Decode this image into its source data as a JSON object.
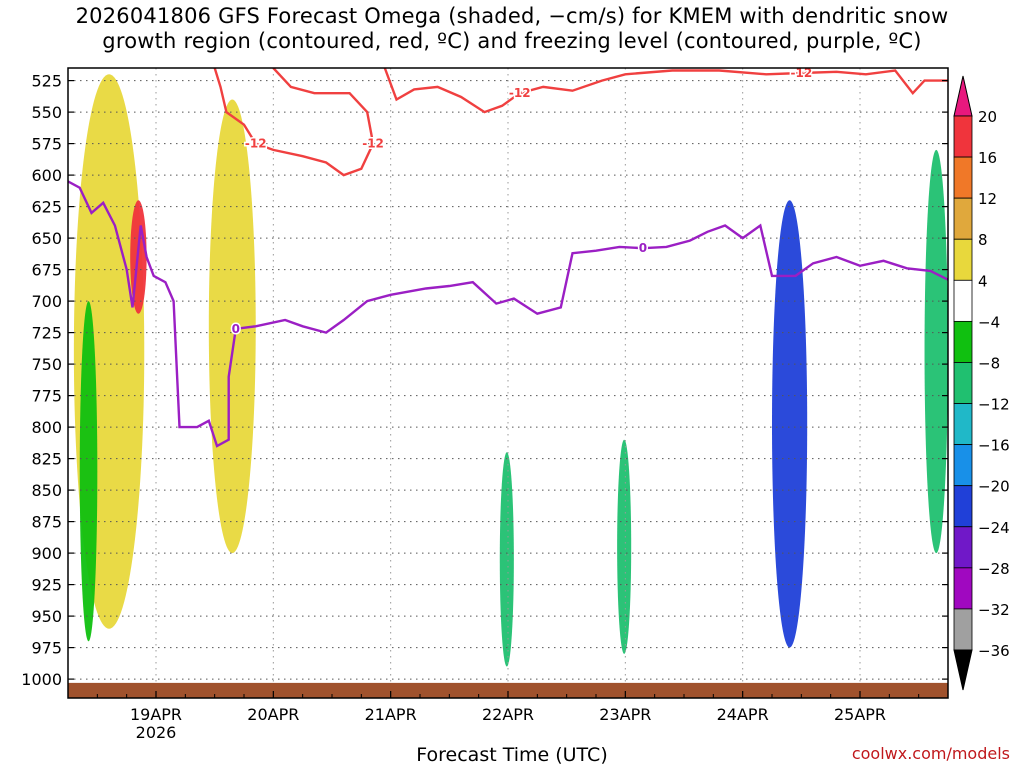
{
  "chart_data": {
    "type": "heatmap",
    "title": "2026041806 GFS Forecast Omega (shaded, −cm/s) for KMEM with dendritic snow\ngrowth region (contoured, red, ºC) and freezing level (contoured, purple, ºC)",
    "xlabel": "Forecast Time (UTC)",
    "ylabel": "",
    "x_ticks": [
      "19APR",
      "20APR",
      "21APR",
      "22APR",
      "23APR",
      "24APR",
      "25APR"
    ],
    "x_tick_year": "2026",
    "x_range_days": [
      18.25,
      25.75
    ],
    "y_ticks": [
      525,
      550,
      575,
      600,
      625,
      650,
      675,
      700,
      725,
      750,
      775,
      800,
      825,
      850,
      875,
      900,
      925,
      950,
      975,
      1000
    ],
    "y_range_hpa": [
      515,
      1015
    ],
    "colorbar": {
      "levels": [
        20,
        16,
        12,
        8,
        4,
        -4,
        -8,
        -12,
        -16,
        -20,
        -24,
        -28,
        -32,
        -36
      ],
      "colors": [
        "#e8187e",
        "#f0343c",
        "#f07828",
        "#e0a83c",
        "#e8d83c",
        "#ffffff",
        "#10c010",
        "#20c070",
        "#20b8c8",
        "#1890e8",
        "#2040d8",
        "#7018c8",
        "#a008c0",
        "#a0a0a0",
        "#000000"
      ],
      "units": "-cm/s"
    },
    "series": [
      {
        "name": "freezing level (0 ºC)",
        "color": "#9b1fc4",
        "contour_label": "0",
        "points": [
          [
            18.25,
            605
          ],
          [
            18.35,
            610
          ],
          [
            18.45,
            630
          ],
          [
            18.55,
            622
          ],
          [
            18.65,
            640
          ],
          [
            18.75,
            675
          ],
          [
            18.8,
            705
          ],
          [
            18.87,
            640
          ],
          [
            18.92,
            665
          ],
          [
            18.98,
            680
          ],
          [
            19.08,
            685
          ],
          [
            19.15,
            700
          ],
          [
            19.2,
            800
          ],
          [
            19.35,
            800
          ],
          [
            19.45,
            795
          ],
          [
            19.52,
            815
          ],
          [
            19.62,
            810
          ],
          [
            19.62,
            760
          ],
          [
            19.68,
            722
          ],
          [
            19.85,
            720
          ],
          [
            20.1,
            715
          ],
          [
            20.25,
            720
          ],
          [
            20.45,
            725
          ],
          [
            20.6,
            715
          ],
          [
            20.8,
            700
          ],
          [
            21.0,
            695
          ],
          [
            21.3,
            690
          ],
          [
            21.5,
            688
          ],
          [
            21.7,
            685
          ],
          [
            21.9,
            702
          ],
          [
            22.05,
            698
          ],
          [
            22.25,
            710
          ],
          [
            22.45,
            705
          ],
          [
            22.55,
            662
          ],
          [
            22.75,
            660
          ],
          [
            22.95,
            657
          ],
          [
            23.15,
            658
          ],
          [
            23.35,
            657
          ],
          [
            23.55,
            652
          ],
          [
            23.7,
            645
          ],
          [
            23.85,
            640
          ],
          [
            24.0,
            650
          ],
          [
            24.15,
            640
          ],
          [
            24.25,
            680
          ],
          [
            24.45,
            680
          ],
          [
            24.6,
            670
          ],
          [
            24.8,
            665
          ],
          [
            25.0,
            672
          ],
          [
            25.2,
            668
          ],
          [
            25.4,
            674
          ],
          [
            25.6,
            676
          ],
          [
            25.75,
            683
          ]
        ]
      },
      {
        "name": "dendritic snow growth region (-12 ºC)",
        "color": "#f04040",
        "contour_label": "-12",
        "points": [
          [
            20.0,
            515
          ],
          [
            20.15,
            530
          ],
          [
            20.35,
            535
          ],
          [
            20.65,
            535
          ],
          [
            20.8,
            550
          ],
          [
            20.85,
            575
          ],
          [
            20.75,
            595
          ],
          [
            20.6,
            600
          ],
          [
            20.45,
            590
          ],
          [
            20.25,
            585
          ],
          [
            20.0,
            580
          ],
          [
            19.85,
            575
          ],
          [
            19.75,
            560
          ],
          [
            19.6,
            550
          ],
          [
            19.55,
            530
          ],
          [
            19.5,
            515
          ]
        ]
      },
      {
        "name": "dendritic snow growth region (-12 ºC) upper",
        "color": "#f04040",
        "contour_label": "-12",
        "points": [
          [
            20.95,
            515
          ],
          [
            21.05,
            540
          ],
          [
            21.2,
            532
          ],
          [
            21.4,
            530
          ],
          [
            21.6,
            538
          ],
          [
            21.8,
            550
          ],
          [
            21.95,
            545
          ],
          [
            22.1,
            535
          ],
          [
            22.3,
            530
          ],
          [
            22.55,
            533
          ],
          [
            22.8,
            525
          ],
          [
            23.0,
            520
          ],
          [
            23.4,
            517
          ],
          [
            23.8,
            517
          ],
          [
            24.2,
            520
          ],
          [
            24.5,
            519
          ],
          [
            24.8,
            518
          ],
          [
            25.05,
            520
          ],
          [
            25.3,
            517
          ],
          [
            25.45,
            535
          ],
          [
            25.55,
            525
          ],
          [
            25.75,
            525
          ]
        ]
      }
    ],
    "shaded_features": [
      {
        "label": "yellow omega 4 to 8 near 19APR",
        "x": [
          18.3,
          18.9
        ],
        "p": [
          520,
          960
        ],
        "level": 4
      },
      {
        "label": "red omega maximum near 19APR",
        "x": [
          18.78,
          18.92
        ],
        "p": [
          620,
          710
        ],
        "level": 16
      },
      {
        "label": "green omega -8 near 19APR lower",
        "x": [
          18.35,
          18.5
        ],
        "p": [
          700,
          970
        ],
        "level": -8
      },
      {
        "label": "yellow omega band 19APR-20APR",
        "x": [
          19.45,
          19.85
        ],
        "p": [
          540,
          900
        ],
        "level": 4
      },
      {
        "label": "green omega near 22APR",
        "x": [
          21.93,
          22.05
        ],
        "p": [
          820,
          990
        ],
        "level": -12
      },
      {
        "label": "green omega near 23APR",
        "x": [
          22.93,
          23.05
        ],
        "p": [
          810,
          980
        ],
        "level": -12
      },
      {
        "label": "blue omega minimum near 24.4APR",
        "x": [
          24.25,
          24.55
        ],
        "p": [
          620,
          975
        ],
        "level": -24
      },
      {
        "label": "green omega near 25.6APR",
        "x": [
          25.55,
          25.75
        ],
        "p": [
          580,
          900
        ],
        "level": -12
      }
    ]
  },
  "credit": "coolwx.com/models"
}
